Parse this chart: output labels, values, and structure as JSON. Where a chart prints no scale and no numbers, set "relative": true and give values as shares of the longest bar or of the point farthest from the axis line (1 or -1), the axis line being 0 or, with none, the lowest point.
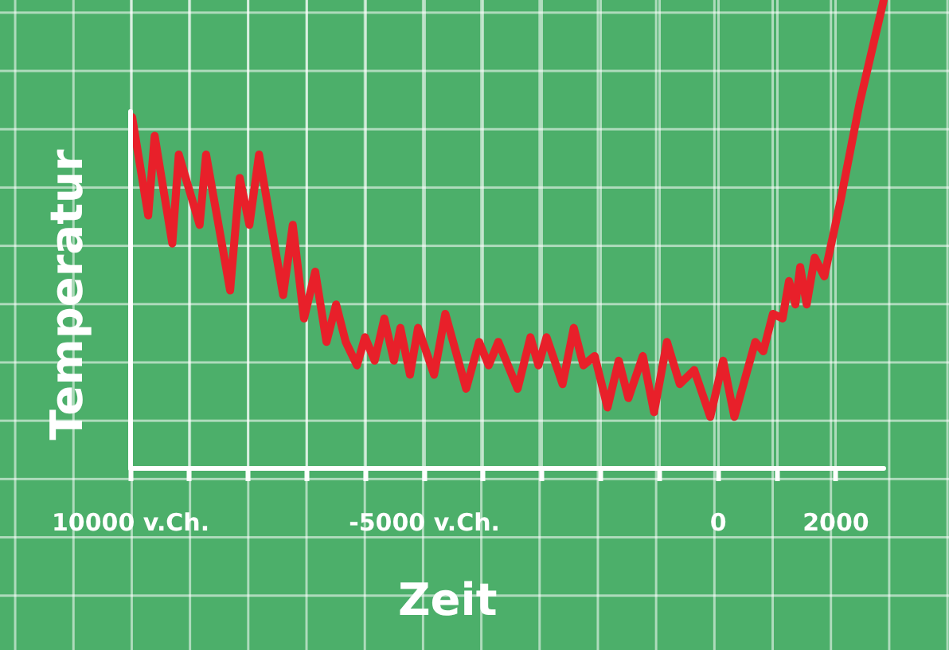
{
  "chart_data": {
    "type": "line",
    "relative": true,
    "xlabel": "Zeit",
    "ylabel": "Temperatur",
    "x": [
      -9973,
      -9700,
      -9590,
      -9290,
      -9180,
      -8825,
      -8715,
      -8306,
      -8142,
      -7978,
      -7814,
      -7404,
      -7240,
      -7049,
      -6858,
      -6667,
      -6503,
      -6339,
      -6148,
      -6011,
      -5847,
      -5683,
      -5519,
      -5410,
      -5246,
      -5109,
      -4836,
      -4645,
      -4290,
      -4071,
      -3907,
      -3743,
      -3415,
      -3197,
      -3060,
      -2923,
      -2650,
      -2459,
      -2295,
      -2104,
      -1885,
      -1694,
      -1530,
      -1284,
      -1093,
      -874,
      -656,
      -410,
      -137,
      82,
      273,
      628,
      765,
      929,
      1093,
      1202,
      1311,
      1393,
      1503,
      1639,
      1803,
      2077,
      2404,
      2814
    ],
    "series": [
      {
        "color": "#e8202a",
        "values": [
          0.75,
          0.54,
          0.71,
          0.48,
          0.67,
          0.52,
          0.67,
          0.38,
          0.62,
          0.52,
          0.67,
          0.37,
          0.52,
          0.32,
          0.42,
          0.27,
          0.35,
          0.27,
          0.22,
          0.28,
          0.23,
          0.32,
          0.23,
          0.3,
          0.2,
          0.3,
          0.2,
          0.33,
          0.17,
          0.27,
          0.22,
          0.27,
          0.17,
          0.28,
          0.22,
          0.28,
          0.18,
          0.3,
          0.22,
          0.24,
          0.13,
          0.23,
          0.15,
          0.24,
          0.12,
          0.27,
          0.18,
          0.21,
          0.11,
          0.23,
          0.11,
          0.27,
          0.25,
          0.33,
          0.32,
          0.4,
          0.35,
          0.43,
          0.35,
          0.45,
          0.41,
          0.57,
          0.78,
          1
        ]
      }
    ],
    "xlim": [
      -10000,
      2814
    ],
    "xticks": [
      {
        "value": -10000,
        "label": "10000 v.Ch."
      },
      {
        "value": -9000,
        "label": null
      },
      {
        "value": -8000,
        "label": null
      },
      {
        "value": -7000,
        "label": null
      },
      {
        "value": -6000,
        "label": null
      },
      {
        "value": -5000,
        "label": "-5000 v.Ch."
      },
      {
        "value": -4000,
        "label": null
      },
      {
        "value": -3000,
        "label": null
      },
      {
        "value": -2000,
        "label": null
      },
      {
        "value": -1000,
        "label": null
      },
      0,
      {
        "value": 1000,
        "label": null
      },
      2000
    ],
    "grid": true,
    "legend": false,
    "marker": "none",
    "line_style": "solid"
  }
}
